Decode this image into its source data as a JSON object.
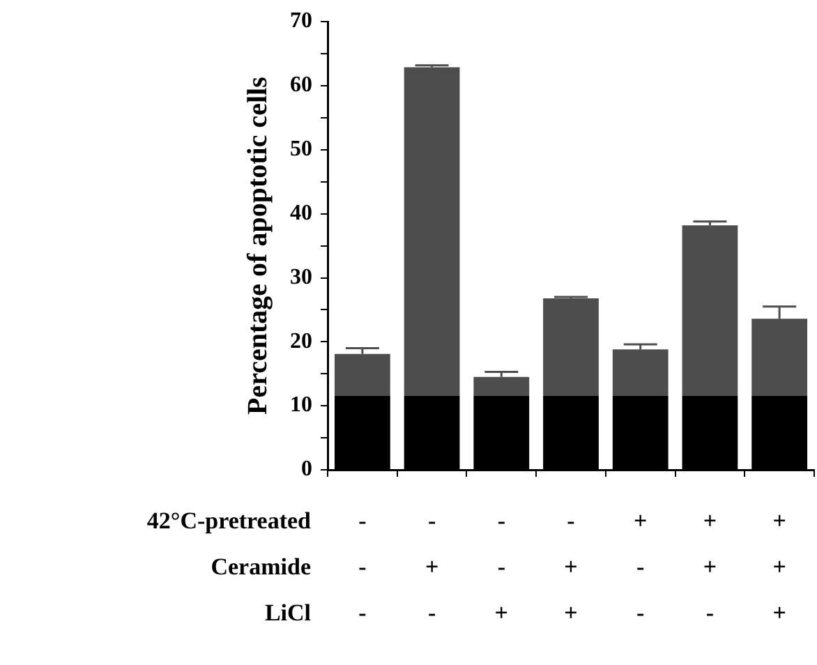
{
  "chart_data": {
    "type": "bar",
    "stacked": true,
    "ylabel": "Percentage of apoptotic cells",
    "categories": [
      "-\n-\n-",
      "-\n+\n-",
      "-\n-\n+",
      "-\n+\n+",
      "+\n-\n-",
      "+\n+\n-",
      "+\n+\n+"
    ],
    "series": [
      {
        "color": "#000000",
        "values": [
          11.6,
          11.6,
          11.6,
          11.6,
          11.6,
          11.6,
          11.6
        ]
      },
      {
        "color": "#4d4d4d",
        "values": [
          6.5,
          51.3,
          2.9,
          15.2,
          7.2,
          26.6,
          12.0
        ],
        "errors": [
          [
            18.1,
            19.0
          ],
          [
            62.9,
            63.2
          ],
          [
            14.5,
            15.3
          ],
          [
            26.8,
            27.0
          ],
          [
            18.8,
            19.6
          ],
          [
            38.2,
            38.8
          ],
          [
            23.6,
            25.5
          ]
        ]
      }
    ],
    "ylim": [
      0,
      70
    ],
    "yticks": [
      0,
      {
        "value": 5,
        "label": null
      },
      10,
      {
        "value": 15,
        "label": null
      },
      20,
      {
        "value": 25,
        "label": null
      },
      30,
      {
        "value": 35,
        "label": null
      },
      40,
      {
        "value": 45,
        "label": null
      },
      50,
      {
        "value": 55,
        "label": null
      },
      60,
      {
        "value": 65,
        "label": null
      },
      70
    ],
    "annotations": [
      "42°C-pretreated",
      "Ceramide",
      "LiCl"
    ],
    "grid": false,
    "legend": false
  }
}
